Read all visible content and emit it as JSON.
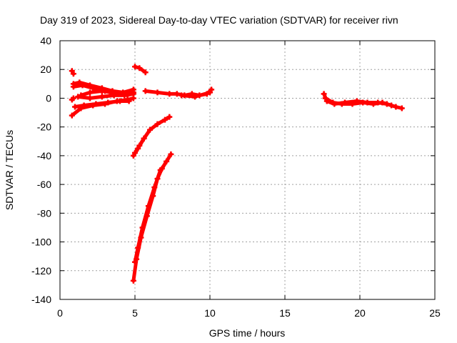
{
  "chart_data": {
    "type": "scatter",
    "title": "Day 319 of 2023, Sidereal Day-to-day VTEC variation (SDTVAR) for receiver rivn",
    "xlabel": "GPS time / hours",
    "ylabel": "SDTVAR / TECUs",
    "xlim": [
      0,
      25
    ],
    "ylim": [
      -140,
      40
    ],
    "xticks": [
      0,
      5,
      10,
      15,
      20,
      25
    ],
    "yticks": [
      -140,
      -120,
      -100,
      -80,
      -60,
      -40,
      -20,
      0,
      20,
      40
    ],
    "grid": true,
    "legend": "none",
    "color": "#ff0000",
    "series": [
      {
        "x": [
          0.8,
          0.9
        ],
        "y": [
          19,
          17
        ]
      },
      {
        "x": [
          0.9,
          1.3,
          2.0,
          2.8,
          3.5,
          4.2,
          4.9
        ],
        "y": [
          10,
          11,
          9,
          7,
          5,
          4,
          6
        ]
      },
      {
        "x": [
          0.9,
          1.5,
          2.2,
          3.0,
          3.8,
          4.5,
          4.9
        ],
        "y": [
          8,
          9,
          7,
          5,
          3,
          2,
          4
        ]
      },
      {
        "x": [
          1.4,
          2.0,
          2.8,
          3.5,
          4.2,
          4.8
        ],
        "y": [
          2,
          4,
          5,
          4,
          3,
          5
        ]
      },
      {
        "x": [
          1.2,
          2.0,
          2.8,
          3.6,
          4.3,
          4.9
        ],
        "y": [
          1,
          0,
          1,
          2,
          2,
          3
        ]
      },
      {
        "x": [
          0.8,
          0.9
        ],
        "y": [
          -1,
          0
        ]
      },
      {
        "x": [
          0.8,
          1.4,
          2.2,
          3.0,
          3.8,
          4.5,
          4.9
        ],
        "y": [
          -12,
          -7,
          -5,
          -4,
          -2,
          -1,
          0
        ]
      },
      {
        "x": [
          1.0,
          1.6,
          2.4,
          3.2,
          4.0,
          4.6
        ],
        "y": [
          -6,
          -5,
          -4,
          -3,
          -2,
          -2
        ]
      },
      {
        "x": [
          5.0,
          5.3,
          5.7
        ],
        "y": [
          22,
          21,
          18
        ]
      },
      {
        "x": [
          5.7,
          6.5,
          7.3,
          7.8,
          8.3,
          8.8,
          9.3,
          9.8,
          10.1
        ],
        "y": [
          5,
          4,
          3,
          3,
          2,
          3,
          2,
          3,
          6
        ]
      },
      {
        "x": [
          8.1,
          9.0,
          10.0
        ],
        "y": [
          2,
          1,
          4
        ]
      },
      {
        "x": [
          4.9,
          5.2,
          5.6,
          6.0,
          6.5,
          7.0,
          7.3
        ],
        "y": [
          -40,
          -35,
          -28,
          -22,
          -18,
          -15,
          -13
        ]
      },
      {
        "x": [
          5.0,
          5.3,
          5.6
        ],
        "y": [
          -38,
          -33,
          -28
        ]
      },
      {
        "x": [
          4.9,
          5.1,
          5.4,
          5.8,
          6.2,
          6.5,
          6.8,
          7.1,
          7.4
        ],
        "y": [
          -127,
          -112,
          -97,
          -82,
          -68,
          -56,
          -49,
          -44,
          -39
        ]
      },
      {
        "x": [
          5.0,
          5.2,
          5.5,
          5.9,
          6.3,
          6.7
        ],
        "y": [
          -114,
          -104,
          -90,
          -75,
          -62,
          -50
        ]
      },
      {
        "x": [
          17.6,
          17.8,
          18.3,
          19.0,
          19.8,
          20.5,
          21.2,
          21.8,
          22.4,
          22.8
        ],
        "y": [
          3,
          -2,
          -4,
          -3,
          -2,
          -3,
          -3,
          -4,
          -6,
          -7
        ]
      },
      {
        "x": [
          17.7,
          18.2,
          18.8,
          19.5,
          20.2,
          20.9,
          21.5,
          22.1
        ],
        "y": [
          0,
          -3,
          -4,
          -4,
          -3,
          -4,
          -3,
          -5
        ]
      }
    ]
  }
}
